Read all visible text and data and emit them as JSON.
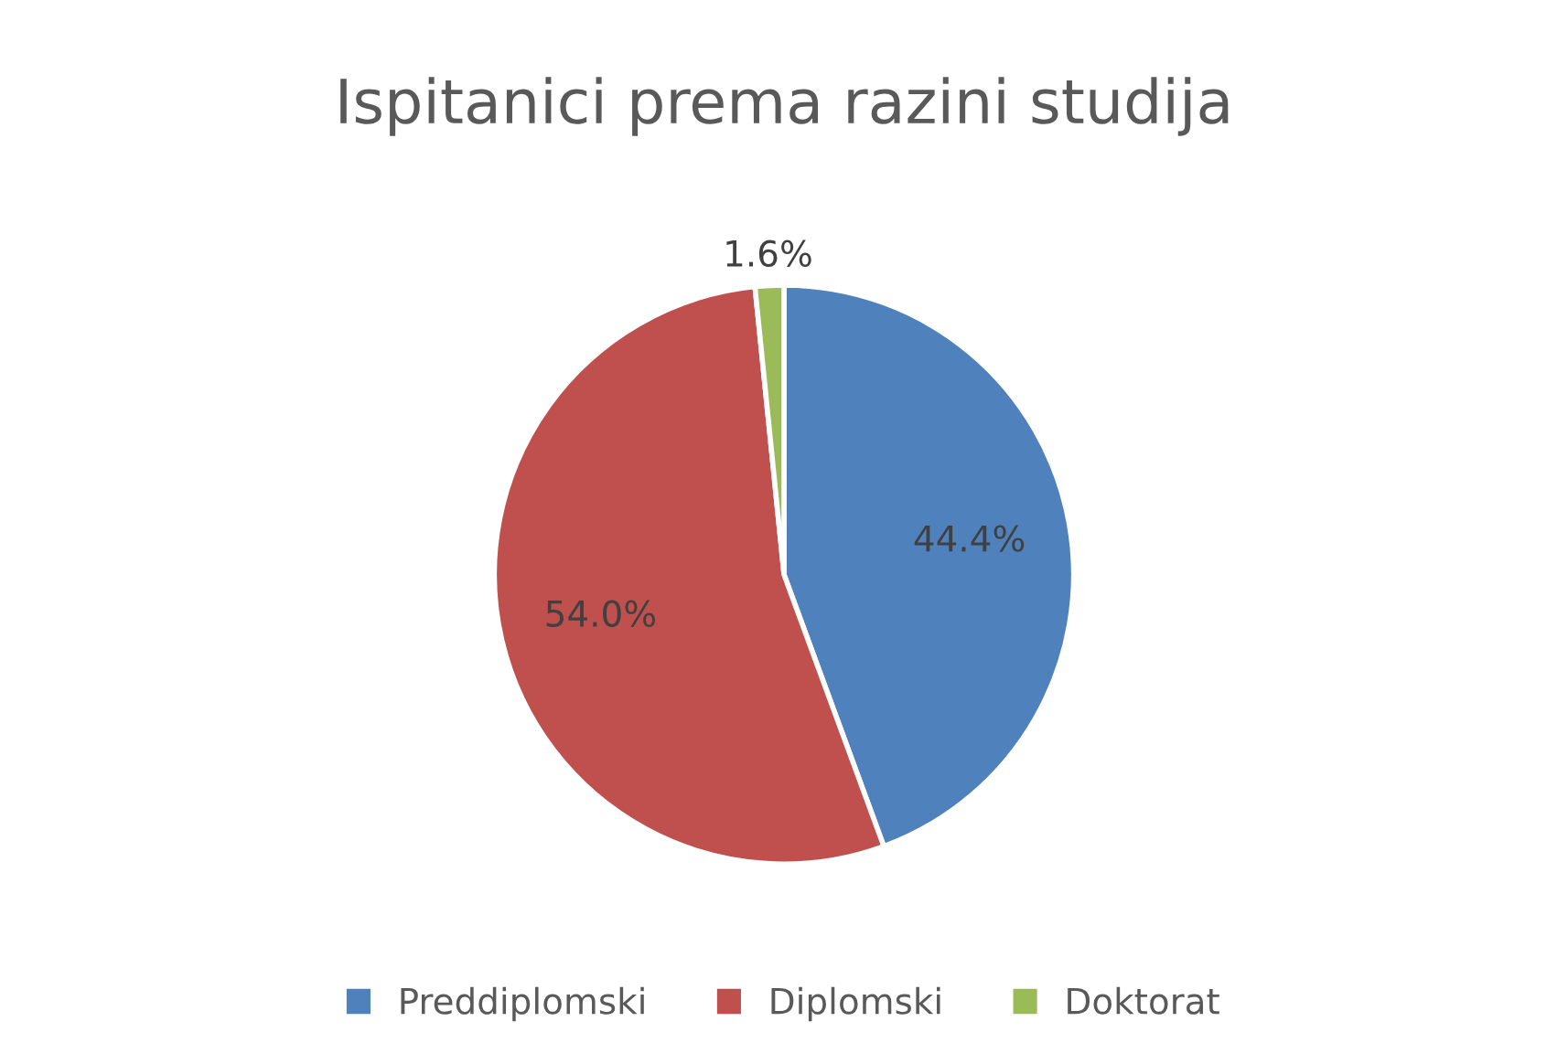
{
  "chart_data": {
    "type": "pie",
    "title": "Ispitanici prema razini studija",
    "categories": [
      "Preddiplomski",
      "Diplomski",
      "Doktorat"
    ],
    "values": [
      44.4,
      54.0,
      1.6
    ],
    "colors": [
      "#4f81bd",
      "#c0504d",
      "#9bbb59"
    ],
    "value_labels": [
      "44.4%",
      "54.0%",
      "1.6%"
    ],
    "legend": "bottom"
  }
}
